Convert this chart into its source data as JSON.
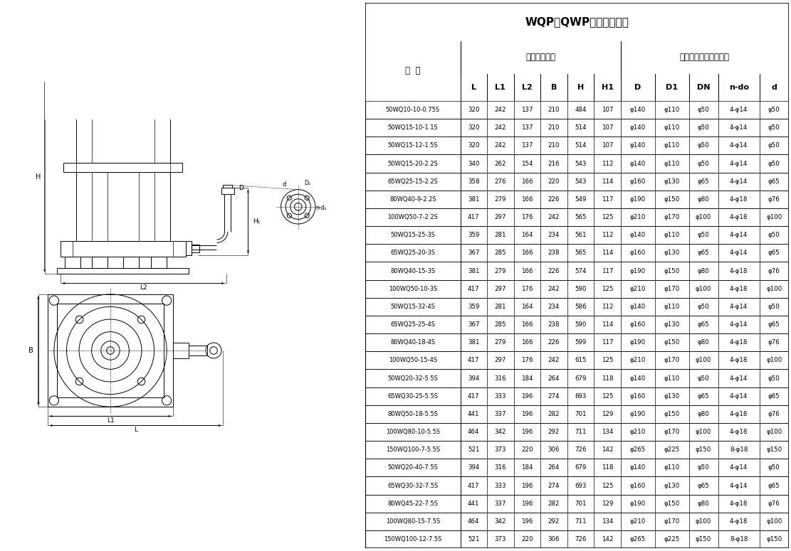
{
  "title": "WQP（QWP）安装尺寸表",
  "subtitle1": "外形安装尺寸",
  "subtitle2": "泵出口法兰及连接尺寸",
  "type_header": "型  号",
  "col_headers": [
    "L",
    "L1",
    "L2",
    "B",
    "H",
    "H1",
    "D",
    "D1",
    "DN",
    "n-do",
    "d"
  ],
  "rows": [
    [
      "50WQ10-10-0.75S",
      "320",
      "242",
      "137",
      "210",
      "484",
      "107",
      "φ140",
      "φ110",
      "φ50",
      "4-φ14",
      "φ50"
    ],
    [
      "50WQ15-10-1.1S",
      "320",
      "242",
      "137",
      "210",
      "514",
      "107",
      "φ140",
      "φ110",
      "φ50",
      "4-φ14",
      "φ50"
    ],
    [
      "50WQ15-12-1.5S",
      "320",
      "242",
      "137",
      "210",
      "514",
      "107",
      "φ140",
      "φ110",
      "φ50",
      "4-φ14",
      "φ50"
    ],
    [
      "50WQ15-20-2.2S",
      "340",
      "262",
      "154",
      "216",
      "543",
      "112",
      "φ140",
      "φ110",
      "φ50",
      "4-φ14",
      "φ50"
    ],
    [
      "65WQ25-15-2.2S",
      "358",
      "276",
      "166",
      "220",
      "543",
      "114",
      "φ160",
      "φ130",
      "φ65",
      "4-φ14",
      "φ65"
    ],
    [
      "80WQ40-9-2.2S",
      "381",
      "279",
      "166",
      "226",
      "549",
      "117",
      "φ190",
      "φ150",
      "φ80",
      "4-φ18",
      "φ76"
    ],
    [
      "100WQ50-7-2.2S",
      "417",
      "297",
      "176",
      "242",
      "565",
      "125",
      "φ210",
      "φ170",
      "φ100",
      "4-φ18",
      "φ100"
    ],
    [
      "50WQ15-25-3S",
      "359",
      "281",
      "164",
      "234",
      "561",
      "112",
      "φ140",
      "φ110",
      "φ50",
      "4-φ14",
      "φ50"
    ],
    [
      "65WQ25-20-3S",
      "367",
      "285",
      "166",
      "238",
      "565",
      "114",
      "φ160",
      "φ130",
      "φ65",
      "4-φ14",
      "φ65"
    ],
    [
      "80WQ40-15-3S",
      "381",
      "279",
      "166",
      "226",
      "574",
      "117",
      "φ190",
      "φ150",
      "φ80",
      "4-φ18",
      "φ76"
    ],
    [
      "100WQ50-10-3S",
      "417",
      "297",
      "176",
      "242",
      "590",
      "125",
      "φ210",
      "φ170",
      "φ100",
      "4-φ18",
      "φ100"
    ],
    [
      "50WQ15-32-4S",
      "359",
      "281",
      "164",
      "234",
      "586",
      "112",
      "φ140",
      "φ110",
      "φ50",
      "4-φ14",
      "φ50"
    ],
    [
      "65WQ25-25-4S",
      "367",
      "285",
      "166",
      "238",
      "590",
      "114",
      "φ160",
      "φ130",
      "φ65",
      "4-φ14",
      "φ65"
    ],
    [
      "80WQ40-18-4S",
      "381",
      "279",
      "166",
      "226",
      "599",
      "117",
      "φ190",
      "φ150",
      "φ80",
      "4-φ18",
      "φ76"
    ],
    [
      "100WQ50-15-4S",
      "417",
      "297",
      "176",
      "242",
      "615",
      "125",
      "φ210",
      "φ170",
      "φ100",
      "4-φ18",
      "φ100"
    ],
    [
      "50WQ20-32-5.5S",
      "394",
      "316",
      "184",
      "264",
      "679",
      "118",
      "φ140",
      "φ110",
      "φ50",
      "4-φ14",
      "φ50"
    ],
    [
      "65WQ30-25-5.5S",
      "417",
      "333",
      "196",
      "274",
      "693",
      "125",
      "φ160",
      "φ130",
      "φ65",
      "4-φ14",
      "φ65"
    ],
    [
      "80WQ50-18-5.5S",
      "441",
      "337",
      "196",
      "282",
      "701",
      "129",
      "φ190",
      "φ150",
      "φ80",
      "4-φ18",
      "φ76"
    ],
    [
      "100WQ80-10-5.5S",
      "464",
      "342",
      "196",
      "292",
      "711",
      "134",
      "φ210",
      "φ170",
      "φ100",
      "4-φ18",
      "φ100"
    ],
    [
      "150WQ100-7-5.5S",
      "521",
      "373",
      "220",
      "306",
      "726",
      "142",
      "φ265",
      "φ225",
      "φ150",
      "8-φ18",
      "φ150"
    ],
    [
      "50WQ20-40-7.5S",
      "394",
      "316",
      "184",
      "264",
      "679",
      "118",
      "φ140",
      "φ110",
      "φ50",
      "4-φ14",
      "φ50"
    ],
    [
      "65WQ30-32-7.5S",
      "417",
      "333",
      "196",
      "274",
      "693",
      "125",
      "φ160",
      "φ130",
      "φ65",
      "4-φ14",
      "φ65"
    ],
    [
      "80WQ45-22-7.5S",
      "441",
      "337",
      "196",
      "282",
      "701",
      "129",
      "φ190",
      "φ150",
      "φ80",
      "4-φ18",
      "φ76"
    ],
    [
      "100WQ80-15-7.5S",
      "464",
      "342",
      "196",
      "292",
      "711",
      "134",
      "φ210",
      "φ170",
      "φ100",
      "4-φ18",
      "φ100"
    ],
    [
      "150WQ100-12-7.5S",
      "521",
      "373",
      "220",
      "306",
      "726",
      "142",
      "φ265",
      "φ225",
      "φ150",
      "8-φ18",
      "φ150"
    ]
  ],
  "bg_color": "#ffffff",
  "line_color": "#000000"
}
